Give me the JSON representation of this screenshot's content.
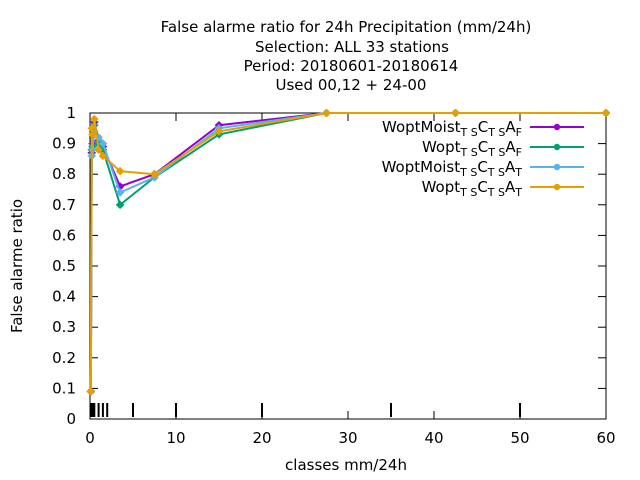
{
  "chart_data": {
    "type": "line",
    "title_lines": [
      "False alarme ratio  for 24h Precipitation (mm/24h)",
      "Selection: ALL     33 stations",
      "Period: 20180601-20180614",
      "Used  00,12  + 24-00"
    ],
    "xlabel": "classes mm/24h",
    "ylabel": "False alarme ratio",
    "xlim": [
      0,
      60
    ],
    "ylim": [
      0,
      1
    ],
    "x_ticks": [
      "0",
      "10",
      "20",
      "30",
      "40",
      "50",
      "60"
    ],
    "y_ticks": [
      "0",
      "0.1",
      "0.2",
      "0.3",
      "0.4",
      "0.5",
      "0.6",
      "0.7",
      "0.8",
      "0.9",
      "1"
    ],
    "class_marks_x": [
      0.1,
      0.2,
      0.3,
      0.5,
      1,
      1.5,
      2,
      5,
      10,
      20,
      35,
      50
    ],
    "grid": false,
    "legend_position": "top-right",
    "series": [
      {
        "name": "WoptMoist",
        "sub1": "T S",
        "mid": "C",
        "sub2": "T S",
        "tail": "A",
        "sub3": "F",
        "color": "#9400d3",
        "x": [
          0.1,
          0.2,
          0.3,
          0.5,
          1,
          1.5,
          3.5,
          7.5,
          15,
          27.5,
          42.5,
          60
        ],
        "y": [
          0.09,
          0.87,
          0.9,
          0.97,
          0.91,
          0.89,
          0.76,
          0.8,
          0.96,
          1,
          1,
          1
        ]
      },
      {
        "name": "Wopt",
        "sub1": "T S",
        "mid": "C",
        "sub2": "T S",
        "tail": "A",
        "sub3": "F",
        "color": "#009e73",
        "x": [
          0.1,
          0.2,
          0.3,
          0.5,
          1,
          1.5,
          3.5,
          7.5,
          15,
          27.5,
          42.5,
          60
        ],
        "y": [
          0.09,
          0.88,
          0.89,
          0.96,
          0.9,
          0.88,
          0.7,
          0.79,
          0.93,
          1,
          1,
          1
        ]
      },
      {
        "name": "WoptMoist",
        "sub1": "T S",
        "mid": "C",
        "sub2": "T S",
        "tail": "A",
        "sub3": "T",
        "color": "#56b4e9",
        "x": [
          0.1,
          0.2,
          0.3,
          0.5,
          1,
          1.5,
          3.5,
          7.5,
          15,
          27.5,
          42.5,
          60
        ],
        "y": [
          0.09,
          0.86,
          0.88,
          0.94,
          0.92,
          0.9,
          0.74,
          0.79,
          0.95,
          1,
          1,
          1
        ]
      },
      {
        "name": "Wopt",
        "sub1": "T S",
        "mid": "C",
        "sub2": "T S",
        "tail": "A",
        "sub3": "T",
        "color": "#e69f00",
        "x": [
          0.1,
          0.2,
          0.3,
          0.5,
          1,
          1.5,
          3.5,
          7.5,
          15,
          27.5,
          42.5,
          60
        ],
        "y": [
          0.09,
          0.95,
          0.93,
          0.98,
          0.88,
          0.86,
          0.81,
          0.8,
          0.94,
          1,
          1,
          1
        ]
      }
    ]
  }
}
